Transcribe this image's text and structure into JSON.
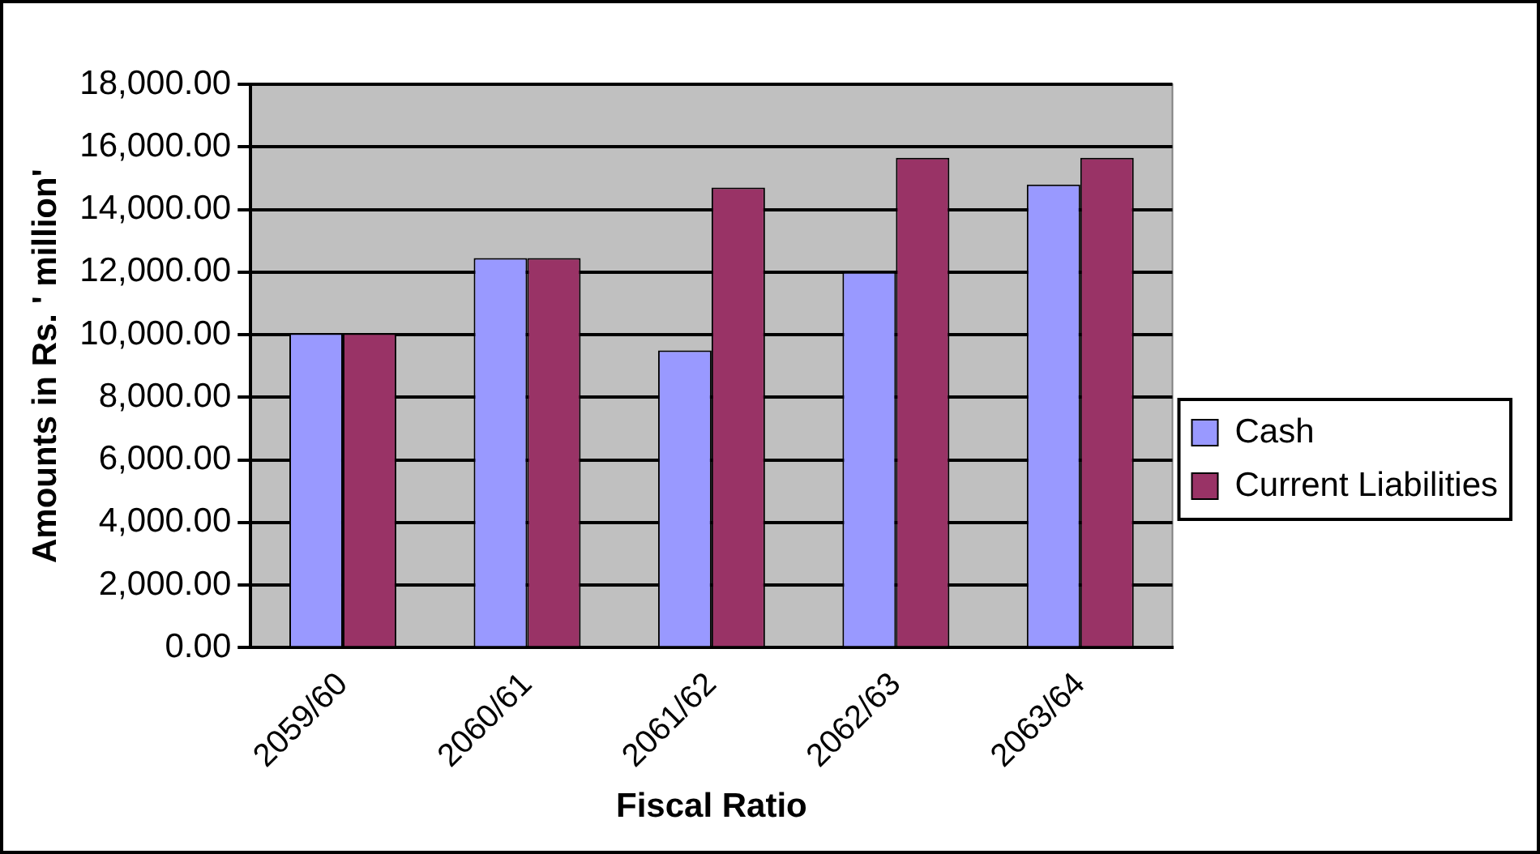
{
  "chart_data": {
    "type": "bar",
    "xlabel": "Fiscal Ratio",
    "ylabel": "Amounts in Rs. ' million'",
    "categories": [
      "2059/60",
      "2060/61",
      "2061/62",
      "2062/63",
      "2063/64"
    ],
    "series": [
      {
        "name": "Cash",
        "color": "#9999ff",
        "values": [
          10050,
          12450,
          9500,
          12000,
          14800
        ]
      },
      {
        "name": "Current Liabilities",
        "color": "#993366",
        "values": [
          10050,
          12450,
          14700,
          15650,
          15650
        ]
      }
    ],
    "ylim": [
      0,
      18000
    ],
    "yticks": [
      {
        "value": 0,
        "label": "0.00"
      },
      {
        "value": 2000,
        "label": "2,000.00"
      },
      {
        "value": 4000,
        "label": "4,000.00"
      },
      {
        "value": 6000,
        "label": "6,000.00"
      },
      {
        "value": 8000,
        "label": "8,000.00"
      },
      {
        "value": 10000,
        "label": "10,000.00"
      },
      {
        "value": 12000,
        "label": "12,000.00"
      },
      {
        "value": 14000,
        "label": "14,000.00"
      },
      {
        "value": 16000,
        "label": "16,000.00"
      },
      {
        "value": 18000,
        "label": "18,000.00"
      }
    ],
    "grid": "y",
    "legend": "right"
  }
}
